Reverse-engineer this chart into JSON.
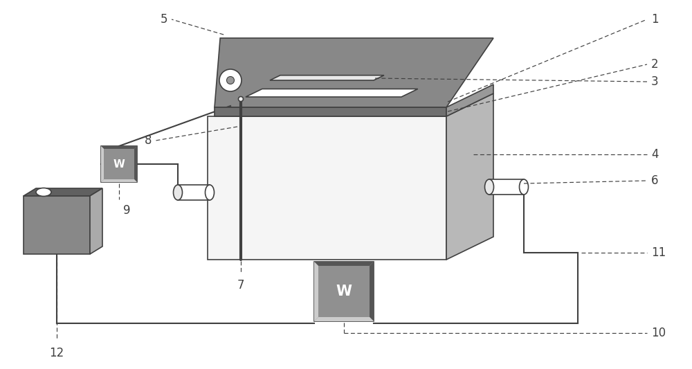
{
  "bg": "#ffffff",
  "lc": "#404040",
  "dark_gray": "#707070",
  "mid_gray": "#999999",
  "light_gray": "#c8c8c8",
  "vlight_gray": "#e8e8e8",
  "tank_top": "#888888",
  "tank_side": "#b8b8b8",
  "tank_front": "#f5f5f5",
  "pump_face": "#909090",
  "pump_dark": "#555555",
  "pump_light": "#cccccc",
  "res_front": "#888888",
  "res_top": "#606060",
  "res_right": "#aaaaaa"
}
